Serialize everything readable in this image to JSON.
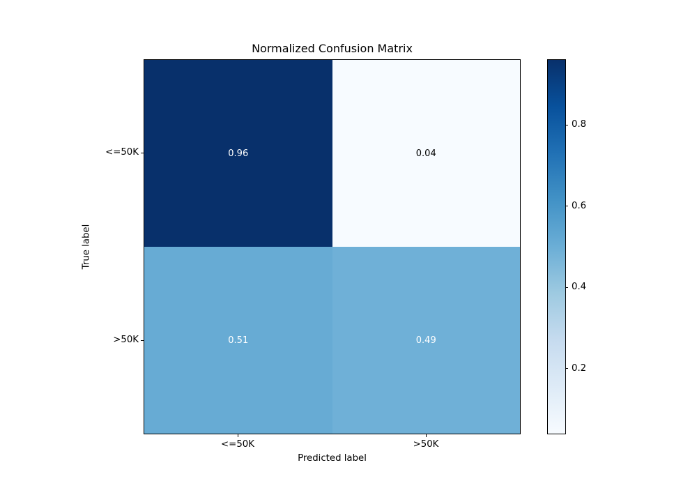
{
  "chart_data": {
    "type": "heatmap",
    "title": "Normalized Confusion Matrix",
    "xlabel": "Predicted label",
    "ylabel": "True label",
    "x_tick_labels": [
      "<=50K",
      ">50K"
    ],
    "y_tick_labels": [
      "<=50K",
      ">50K"
    ],
    "categories": [
      "<=50K",
      ">50K"
    ],
    "matrix": [
      [
        0.96,
        0.04
      ],
      [
        0.51,
        0.49
      ]
    ],
    "colormap": "Blues",
    "value_range": [
      0.04,
      0.96
    ],
    "grid": false,
    "legend": "colorbar-right",
    "cells": [
      {
        "row": 0,
        "col": 0,
        "value": 0.96,
        "label": "0.96",
        "bg": "#08306b",
        "text_color": "#ffffff"
      },
      {
        "row": 0,
        "col": 1,
        "value": 0.04,
        "label": "0.04",
        "bg": "#f7fbff",
        "text_color": "#000000"
      },
      {
        "row": 1,
        "col": 0,
        "value": 0.51,
        "label": "0.51",
        "bg": "#67abd4",
        "text_color": "#ffffff"
      },
      {
        "row": 1,
        "col": 1,
        "value": 0.49,
        "label": "0.49",
        "bg": "#6fb0d7",
        "text_color": "#ffffff"
      }
    ],
    "colorbar": {
      "ticks": [
        {
          "value": 0.8,
          "label": "0.8"
        },
        {
          "value": 0.6,
          "label": "0.6"
        },
        {
          "value": 0.4,
          "label": "0.4"
        },
        {
          "value": 0.2,
          "label": "0.2"
        }
      ],
      "gradient_stops_bottom_to_top": [
        "#f7fbff",
        "#deebf7",
        "#c6dbef",
        "#9ecae1",
        "#6baed6",
        "#4292c6",
        "#2171b5",
        "#08519c",
        "#08306b"
      ]
    }
  }
}
